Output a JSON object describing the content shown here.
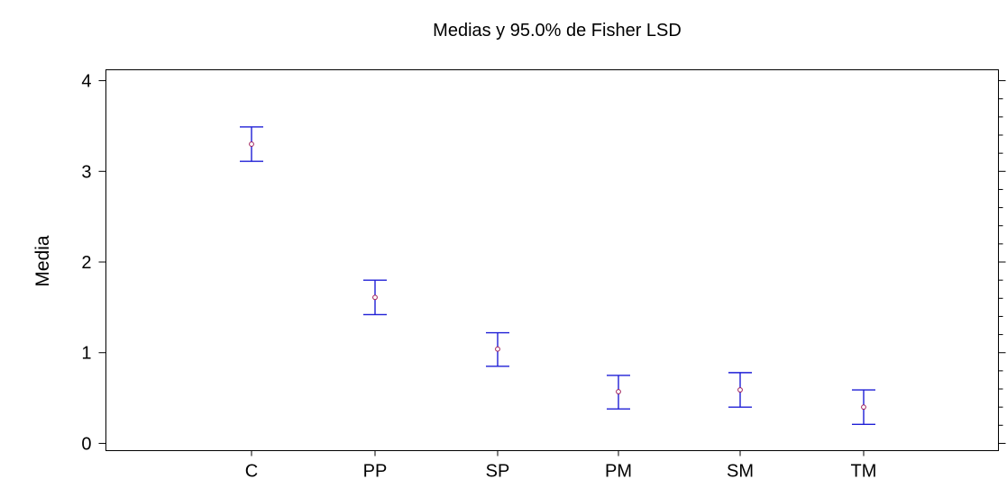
{
  "chart_data": {
    "type": "errorbar",
    "title": "Medias y 95.0% de Fisher LSD",
    "xlabel": "",
    "ylabel": "Media",
    "categories": [
      "C",
      "PP",
      "SP",
      "PM",
      "SM",
      "TM"
    ],
    "series": [
      {
        "means": [
          3.3,
          1.61,
          1.04,
          0.57,
          0.59,
          0.4
        ],
        "lower": [
          3.11,
          1.42,
          0.85,
          0.38,
          0.4,
          0.21
        ],
        "upper": [
          3.49,
          1.8,
          1.22,
          0.75,
          0.78,
          0.59
        ]
      }
    ],
    "yticks": [
      "0",
      "1",
      "2",
      "3",
      "4"
    ],
    "ylim": [
      -0.08,
      4.12
    ],
    "grid": false,
    "legend": "none",
    "colors": {
      "errorbar": "#1f1fd6",
      "mean_marker": "#a0205a",
      "axes": "#000000"
    }
  }
}
